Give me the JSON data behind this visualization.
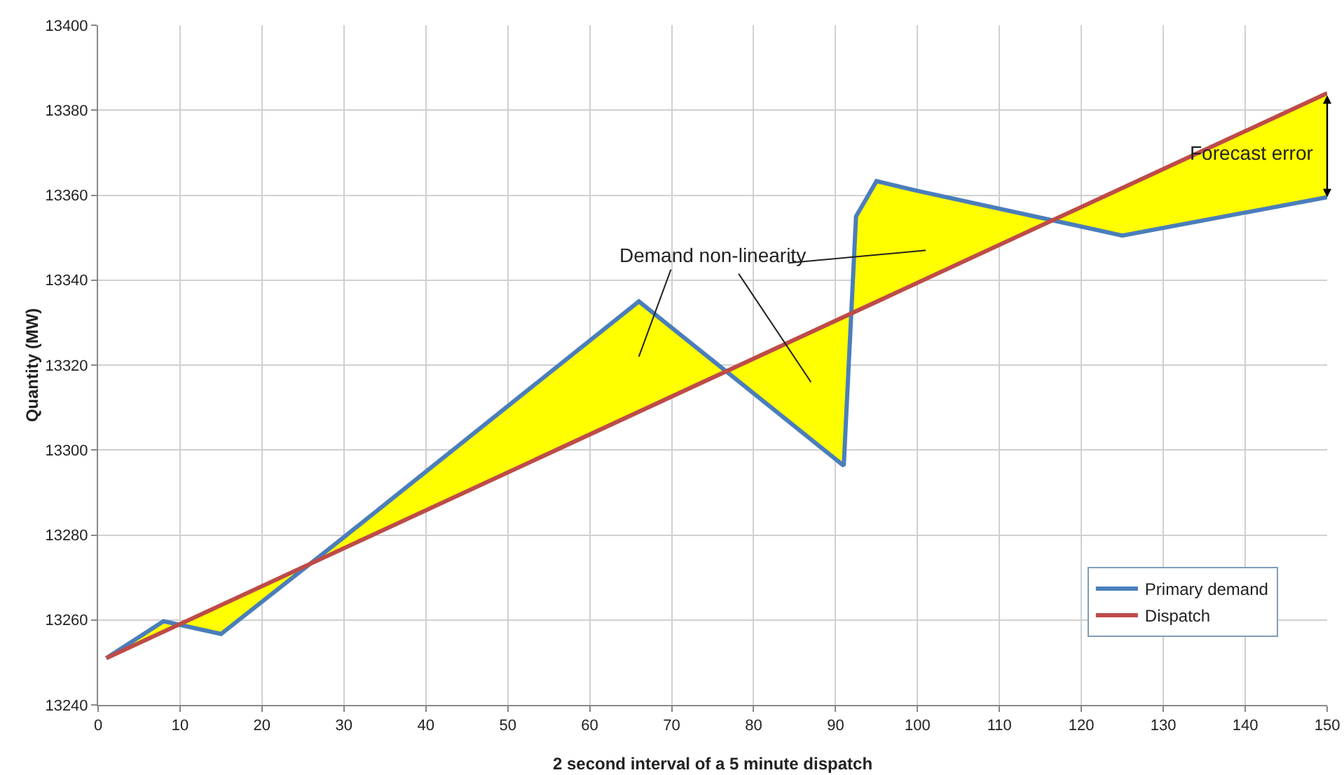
{
  "chart_data": {
    "type": "line",
    "xlabel": "2 second interval of a 5 minute dispatch",
    "ylabel": "Quantity (MW)",
    "xlim": [
      0,
      150
    ],
    "xticks": [
      0,
      10,
      20,
      30,
      40,
      50,
      60,
      70,
      80,
      90,
      100,
      110,
      120,
      130,
      140,
      150
    ],
    "ylim": [
      13240,
      13400
    ],
    "yticks": [
      13240,
      13260,
      13280,
      13300,
      13320,
      13340,
      13360,
      13380,
      13400
    ],
    "grid": true,
    "legend": "bottom right",
    "marker": "none",
    "line_style": "solid",
    "series": [
      {
        "name": "Primary demand",
        "color": "#4a7ebb",
        "x": [
          1,
          8,
          15,
          30,
          66,
          91,
          92.5,
          95,
          100,
          125,
          150
        ],
        "values": [
          13251,
          13259.7,
          13256.7,
          13279.5,
          13335,
          13296.3,
          13355,
          13363.3,
          13361,
          13350.5,
          13359.5
        ],
        "lower": [
          13251,
          13257.2,
          13263.5,
          13276.9,
          13309,
          13331.3,
          13332.6,
          13334.9,
          13339.4,
          13361.7,
          13384
        ],
        "upper": [
          13251,
          13259.7,
          13256.7,
          13279.5,
          13335,
          13296.3,
          13355,
          13363.3,
          13361,
          13350.5,
          13359.5
        ]
      },
      {
        "name": "Dispatch",
        "color": "#be4b48",
        "x": [
          1,
          150
        ],
        "values": [
          13251,
          13384
        ]
      }
    ],
    "annotations": [
      "Demand non-linearity",
      {
        "text": "Forecast error",
        "x": 150,
        "y": 13372
      }
    ]
  }
}
